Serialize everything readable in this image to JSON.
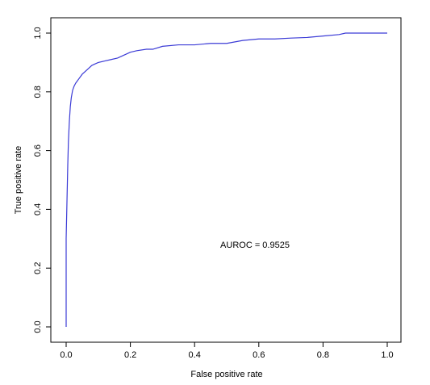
{
  "chart_data": {
    "type": "line",
    "title": "",
    "xlabel": "False positive rate",
    "ylabel": "True positive rate",
    "xlim": [
      0,
      1
    ],
    "ylim": [
      0,
      1
    ],
    "x_ticks": [
      "0.0",
      "0.2",
      "0.4",
      "0.6",
      "0.8",
      "1.0"
    ],
    "y_ticks": [
      "0.0",
      "0.2",
      "0.4",
      "0.6",
      "0.8",
      "1.0"
    ],
    "grid": false,
    "legend": "none",
    "line_color": "#3b3bd6",
    "annotation": {
      "text": "AUROC  = 0.9525",
      "x": 0.5,
      "y": 0.28
    },
    "series": [
      {
        "x": [
          0.0,
          0.0,
          0.003,
          0.005,
          0.007,
          0.01,
          0.013,
          0.016,
          0.02,
          0.025,
          0.03,
          0.04,
          0.05,
          0.06,
          0.07,
          0.08,
          0.09,
          0.1,
          0.12,
          0.14,
          0.16,
          0.18,
          0.2,
          0.22,
          0.25,
          0.27,
          0.3,
          0.35,
          0.4,
          0.45,
          0.5,
          0.55,
          0.6,
          0.65,
          0.7,
          0.75,
          0.8,
          0.85,
          0.87,
          0.9,
          0.95,
          1.0
        ],
        "y": [
          0.0,
          0.3,
          0.45,
          0.55,
          0.63,
          0.7,
          0.75,
          0.78,
          0.805,
          0.82,
          0.83,
          0.845,
          0.86,
          0.87,
          0.88,
          0.89,
          0.895,
          0.9,
          0.905,
          0.91,
          0.915,
          0.925,
          0.935,
          0.94,
          0.945,
          0.945,
          0.955,
          0.96,
          0.96,
          0.965,
          0.965,
          0.975,
          0.98,
          0.98,
          0.983,
          0.985,
          0.99,
          0.995,
          1.0,
          1.0,
          1.0,
          1.0
        ]
      }
    ]
  }
}
